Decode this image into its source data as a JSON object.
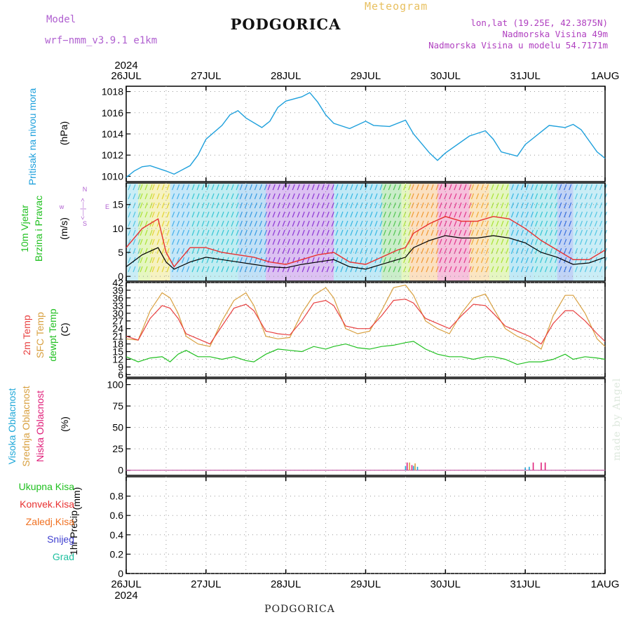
{
  "header": {
    "title": "PODGORICA",
    "subtitle": "Meteogram",
    "model_label": "Model",
    "model_name": "wrf−nmm_v3.9.1  e1km",
    "lonlat": "lon,lat (19.25E, 42.3875N)",
    "elevation": "Nadmorska Visina 49m",
    "model_elevation": "Nadmorska Visina u modelu 54.7171m",
    "footer_title": "PODGORICA",
    "credit": "made by Angel"
  },
  "x_axis": {
    "year": "2024",
    "day_labels": [
      "26JUL",
      "27JUL",
      "28JUL",
      "29JUL",
      "30JUL",
      "31JUL",
      "1AUG"
    ]
  },
  "colors": {
    "pressure": "#1ea0dc",
    "wind_speed": "#000000",
    "gust": "#e83030",
    "temp2m": "#e84040",
    "sfc_temp": "#d8a040",
    "dewpt": "#20c020",
    "high_cloud": "#20a8d8",
    "mid_cloud": "#d8a040",
    "low_cloud": "#e0207a",
    "total_precip": "#20c020",
    "conv_precip": "#e83030",
    "frozen_precip": "#f07020",
    "snow": "#4040d0",
    "hail": "#20c0a0"
  },
  "chart_data": [
    {
      "type": "line",
      "panel": "pressure",
      "ylabel": "Pritisak na nivou mora",
      "unit": "(hPa)",
      "ylim": [
        1009.5,
        1018.5
      ],
      "yticks": [
        1010,
        1012,
        1014,
        1016,
        1018
      ],
      "x_days": [
        0,
        0.1,
        0.2,
        0.3,
        0.5,
        0.6,
        0.8,
        0.9,
        1.0,
        1.2,
        1.3,
        1.4,
        1.5,
        1.7,
        1.8,
        1.9,
        2.0,
        2.2,
        2.3,
        2.4,
        2.5,
        2.6,
        2.8,
        3.0,
        3.1,
        3.3,
        3.5,
        3.6,
        3.8,
        3.9,
        4.0,
        4.3,
        4.5,
        4.6,
        4.7,
        4.9,
        5.0,
        5.3,
        5.5,
        5.6,
        5.7,
        5.9,
        6.0
      ],
      "values": [
        1009.9,
        1010.5,
        1010.9,
        1011.0,
        1010.5,
        1010.2,
        1011.0,
        1012.0,
        1013.5,
        1014.8,
        1015.8,
        1016.2,
        1015.5,
        1014.6,
        1015.2,
        1016.5,
        1017.1,
        1017.5,
        1017.9,
        1017.0,
        1015.8,
        1015.0,
        1014.5,
        1015.2,
        1014.8,
        1014.7,
        1015.3,
        1014.0,
        1012.2,
        1011.5,
        1012.2,
        1013.8,
        1014.3,
        1013.5,
        1012.3,
        1011.9,
        1013.0,
        1014.8,
        1014.6,
        1014.9,
        1014.4,
        1012.3,
        1011.7
      ]
    },
    {
      "type": "line",
      "panel": "wind",
      "ylabel": [
        "10m Vjetar",
        "Brzina i Pravac"
      ],
      "unit": "(m/s)",
      "ylim": [
        -1,
        19.5
      ],
      "yticks": [
        0,
        5,
        10,
        15
      ],
      "direction_key": [
        "w",
        "<—|—>",
        "E",
        "N",
        "∧",
        "S"
      ],
      "x_days": [
        0,
        0.2,
        0.4,
        0.5,
        0.6,
        0.8,
        1.0,
        1.2,
        1.4,
        1.6,
        1.8,
        2.0,
        2.2,
        2.4,
        2.6,
        2.8,
        3.0,
        3.2,
        3.4,
        3.5,
        3.6,
        3.8,
        4.0,
        4.2,
        4.4,
        4.6,
        4.8,
        5.0,
        5.2,
        5.4,
        5.6,
        5.8,
        6.0
      ],
      "series": [
        {
          "name": "wind speed",
          "values": [
            2,
            4.5,
            6,
            3,
            1.5,
            3,
            4,
            3.5,
            3,
            2.5,
            2,
            1.8,
            2.5,
            3,
            3.5,
            2,
            1.5,
            2.5,
            3.5,
            4,
            6,
            7.5,
            8.5,
            8,
            8,
            8.5,
            8,
            7,
            5,
            4,
            2.5,
            2.8,
            4
          ]
        },
        {
          "name": "gust",
          "values": [
            6,
            10,
            12,
            5,
            2,
            6,
            6,
            5,
            4.5,
            4,
            3,
            2.5,
            3.5,
            4.5,
            5,
            3,
            2.5,
            4,
            5.5,
            6,
            9,
            11,
            12.5,
            11.5,
            11.5,
            12.5,
            12,
            10,
            7.5,
            5.5,
            3.5,
            3.5,
            5.5
          ]
        }
      ]
    },
    {
      "type": "line",
      "panel": "temperature",
      "ylabel": [
        "2m Temp",
        "SFC Temp",
        "dewpt Temp"
      ],
      "unit": "(C)",
      "ylim": [
        5,
        42
      ],
      "yticks": [
        6,
        9,
        12,
        15,
        18,
        21,
        24,
        27,
        30,
        33,
        36,
        39,
        42
      ],
      "x_days": [
        0,
        0.15,
        0.3,
        0.45,
        0.55,
        0.65,
        0.75,
        0.9,
        1.05,
        1.2,
        1.35,
        1.5,
        1.6,
        1.75,
        1.9,
        2.05,
        2.2,
        2.35,
        2.5,
        2.6,
        2.75,
        2.9,
        3.05,
        3.2,
        3.35,
        3.5,
        3.6,
        3.75,
        3.9,
        4.05,
        4.2,
        4.35,
        4.5,
        4.6,
        4.75,
        4.9,
        5.05,
        5.2,
        5.35,
        5.5,
        5.6,
        5.75,
        5.9,
        6.0
      ],
      "series": [
        {
          "name": "2m Temp",
          "values": [
            21,
            19.5,
            28,
            33,
            32,
            28,
            22,
            20,
            18,
            25,
            32,
            33.5,
            31,
            23,
            22,
            21.5,
            27,
            34,
            35,
            33,
            25,
            24,
            24,
            29,
            35,
            35.5,
            34,
            28,
            26,
            24,
            29,
            33.5,
            33,
            30,
            25,
            23,
            21,
            18,
            26,
            31,
            31,
            27,
            22,
            19
          ]
        },
        {
          "name": "SFC Temp",
          "values": [
            20,
            19.5,
            31,
            38,
            36,
            30,
            21,
            18,
            17,
            27,
            35,
            38,
            33,
            21,
            20,
            20.5,
            30,
            37,
            40,
            36,
            24,
            22,
            23,
            31,
            40,
            41,
            37,
            27,
            24,
            22,
            30,
            36,
            37.5,
            32,
            24,
            21,
            19,
            16,
            29,
            37,
            37,
            30,
            20,
            17
          ]
        },
        {
          "name": "dewpt Temp",
          "values": [
            13,
            11,
            12.5,
            13,
            11,
            14,
            15.5,
            13,
            13,
            12,
            13,
            11.5,
            11,
            14,
            16,
            15.5,
            15,
            17,
            16,
            17,
            18,
            16.5,
            16,
            17,
            17.5,
            18.5,
            19,
            16,
            14,
            13,
            13,
            12,
            13,
            13,
            12,
            10,
            11,
            11,
            12,
            14,
            12,
            13,
            12.5,
            12
          ]
        }
      ]
    },
    {
      "type": "bar",
      "panel": "clouds",
      "ylabel": [
        "Visoka Oblacnost",
        "Srednja Oblacnost",
        "Niska Oblacnost"
      ],
      "unit": "(%)",
      "ylim": [
        -6,
        107
      ],
      "yticks": [
        0,
        25,
        50,
        75,
        100
      ],
      "series": [
        {
          "name": "Visoka Oblacnost",
          "x_days": [
            3.5,
            3.6,
            3.65,
            5.0,
            5.05
          ],
          "values": [
            5,
            5,
            4,
            3,
            4
          ]
        },
        {
          "name": "Srednja Oblacnost",
          "x_days": [
            3.55,
            3.62
          ],
          "values": [
            9,
            8
          ]
        },
        {
          "name": "Niska Oblacnost",
          "x_days": [
            3.52,
            3.58,
            5.1,
            5.2,
            5.25
          ],
          "values": [
            9,
            6,
            9,
            9,
            9
          ]
        }
      ]
    },
    {
      "type": "bar",
      "panel": "precip",
      "ylabel": "1hr Precip",
      "unit": "(mm)",
      "ylim": [
        0,
        1
      ],
      "yticks": [
        0,
        0.2,
        0.4,
        0.6,
        0.8
      ],
      "legend": [
        "Ukupna  Kisa",
        "Konvek.Kisa",
        "Zaledj.Kisa",
        "Snijeg",
        "Grad"
      ],
      "values": []
    }
  ]
}
